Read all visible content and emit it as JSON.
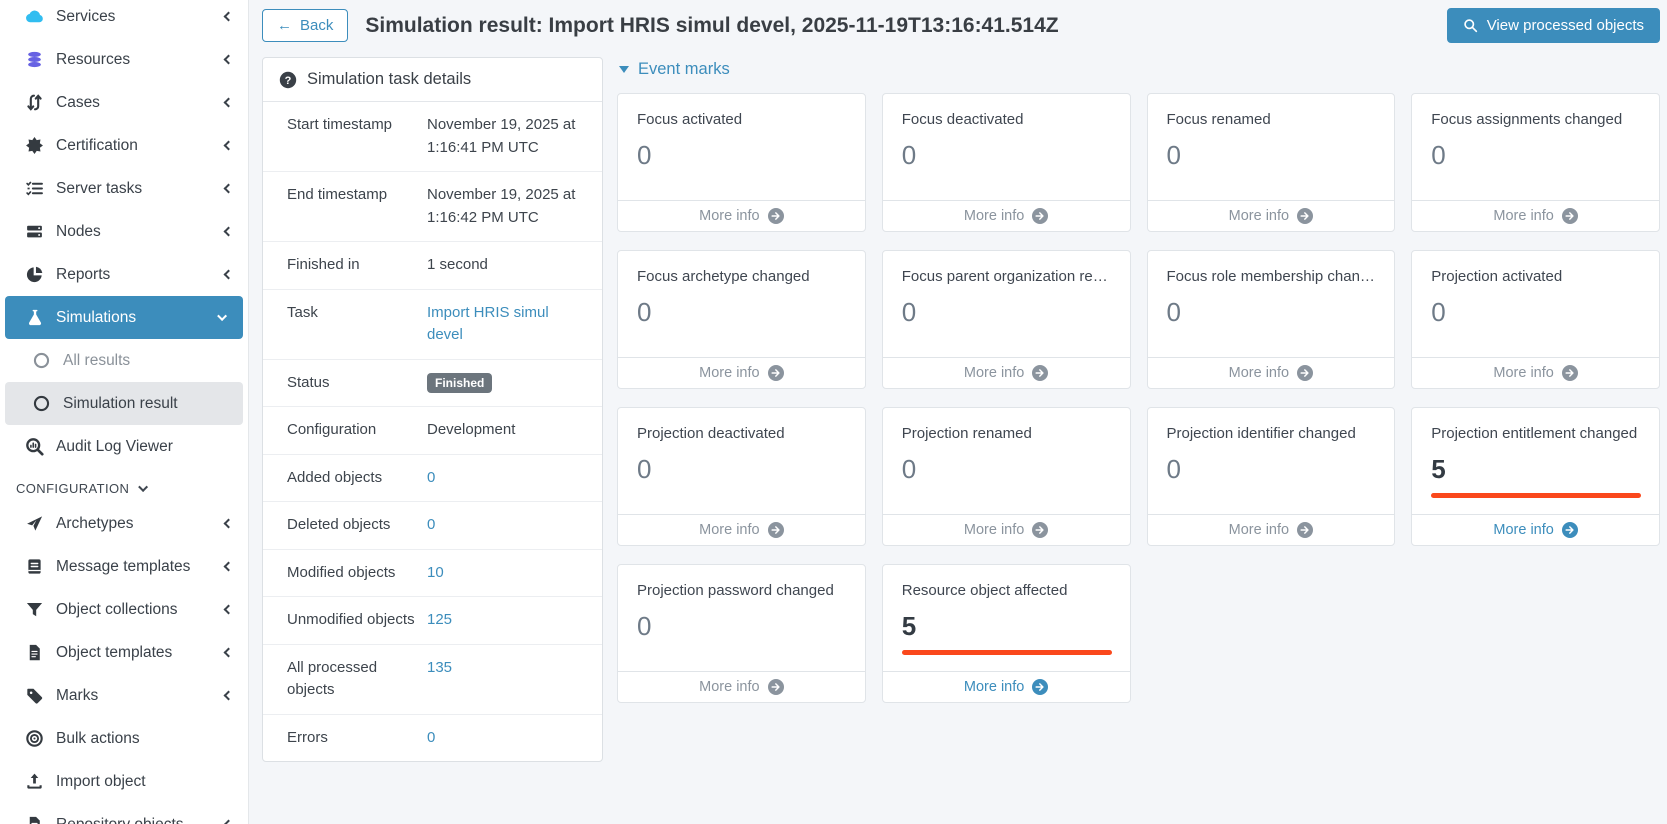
{
  "colors": {
    "accent_blue": "#3c8dbc",
    "highlight_orange": "#fa481c",
    "badge_gray": "#6c757d",
    "services_icon_cyan": "#31bdf0",
    "resources_icon_purple": "#6762e3"
  },
  "sidebar": {
    "items": [
      {
        "label": "Services",
        "icon": "cloud-icon",
        "icon_class": "c-cyan",
        "chevron": "left"
      },
      {
        "label": "Resources",
        "icon": "database-icon",
        "icon_class": "c-purple",
        "chevron": "left"
      },
      {
        "label": "Cases",
        "icon": "case-arrows-icon",
        "chevron": "left"
      },
      {
        "label": "Certification",
        "icon": "certificate-icon",
        "chevron": "left"
      },
      {
        "label": "Server tasks",
        "icon": "task-list-icon",
        "chevron": "left"
      },
      {
        "label": "Nodes",
        "icon": "server-icon",
        "chevron": "left"
      },
      {
        "label": "Reports",
        "icon": "pie-chart-icon",
        "chevron": "left"
      },
      {
        "label": "Simulations",
        "icon": "flask-icon",
        "chevron": "down",
        "active": true
      },
      {
        "label": "All results",
        "icon": "circle-icon",
        "sub": true,
        "muted": true
      },
      {
        "label": "Simulation result",
        "icon": "circle-icon",
        "sub": true,
        "selected": true
      },
      {
        "label": "Audit Log Viewer",
        "icon": "audit-magnifier-icon"
      },
      {
        "label": "CONFIGURATION",
        "header": true,
        "chevron": "down"
      },
      {
        "label": "Archetypes",
        "icon": "archetype-icon",
        "chevron": "left"
      },
      {
        "label": "Message templates",
        "icon": "book-icon",
        "chevron": "left"
      },
      {
        "label": "Object collections",
        "icon": "filter-icon",
        "chevron": "left"
      },
      {
        "label": "Object templates",
        "icon": "file-icon",
        "chevron": "left"
      },
      {
        "label": "Marks",
        "icon": "tag-icon",
        "chevron": "left"
      },
      {
        "label": "Bulk actions",
        "icon": "bullseye-icon"
      },
      {
        "label": "Import object",
        "icon": "upload-icon"
      },
      {
        "label": "Repository objects",
        "icon": "file-icon",
        "chevron": "left"
      }
    ]
  },
  "header": {
    "back_label": "Back",
    "title": "Simulation result: Import HRIS simul devel, 2025-11-19T13:16:41.514Z",
    "view_button_label": "View processed objects"
  },
  "details": {
    "title": "Simulation task details",
    "rows": [
      {
        "label": "Start timestamp",
        "value": "November 19, 2025 at 1:16:41 PM UTC",
        "type": "text"
      },
      {
        "label": "End timestamp",
        "value": "November 19, 2025 at 1:16:42 PM UTC",
        "type": "text"
      },
      {
        "label": "Finished in",
        "value": "1 second",
        "type": "text"
      },
      {
        "label": "Task",
        "value": "Import HRIS simul devel",
        "type": "link"
      },
      {
        "label": "Status",
        "value": "Finished",
        "type": "badge"
      },
      {
        "label": "Configuration",
        "value": "Development",
        "type": "text"
      },
      {
        "label": "Added objects",
        "value": "0",
        "type": "link"
      },
      {
        "label": "Deleted objects",
        "value": "0",
        "type": "link"
      },
      {
        "label": "Modified objects",
        "value": "10",
        "type": "link"
      },
      {
        "label": "Unmodified objects",
        "value": "125",
        "type": "link"
      },
      {
        "label": "All processed objects",
        "value": "135",
        "type": "link"
      },
      {
        "label": "Errors",
        "value": "0",
        "type": "link"
      }
    ]
  },
  "event_marks": {
    "title": "Event marks",
    "more_info_label": "More info",
    "cards": [
      {
        "title": "Focus activated",
        "value": "0"
      },
      {
        "title": "Focus deactivated",
        "value": "0"
      },
      {
        "title": "Focus renamed",
        "value": "0"
      },
      {
        "title": "Focus assignments changed",
        "value": "0"
      },
      {
        "title": "Focus archetype changed",
        "value": "0"
      },
      {
        "title": "Focus parent organization ref…",
        "value": "0"
      },
      {
        "title": "Focus role membership chan…",
        "value": "0"
      },
      {
        "title": "Projection activated",
        "value": "0"
      },
      {
        "title": "Projection deactivated",
        "value": "0"
      },
      {
        "title": "Projection renamed",
        "value": "0"
      },
      {
        "title": "Projection identifier changed",
        "value": "0"
      },
      {
        "title": "Projection entitlement changed",
        "value": "5",
        "highlighted": true
      },
      {
        "title": "Projection password changed",
        "value": "0"
      },
      {
        "title": "Resource object affected",
        "value": "5",
        "highlighted": true
      }
    ]
  }
}
